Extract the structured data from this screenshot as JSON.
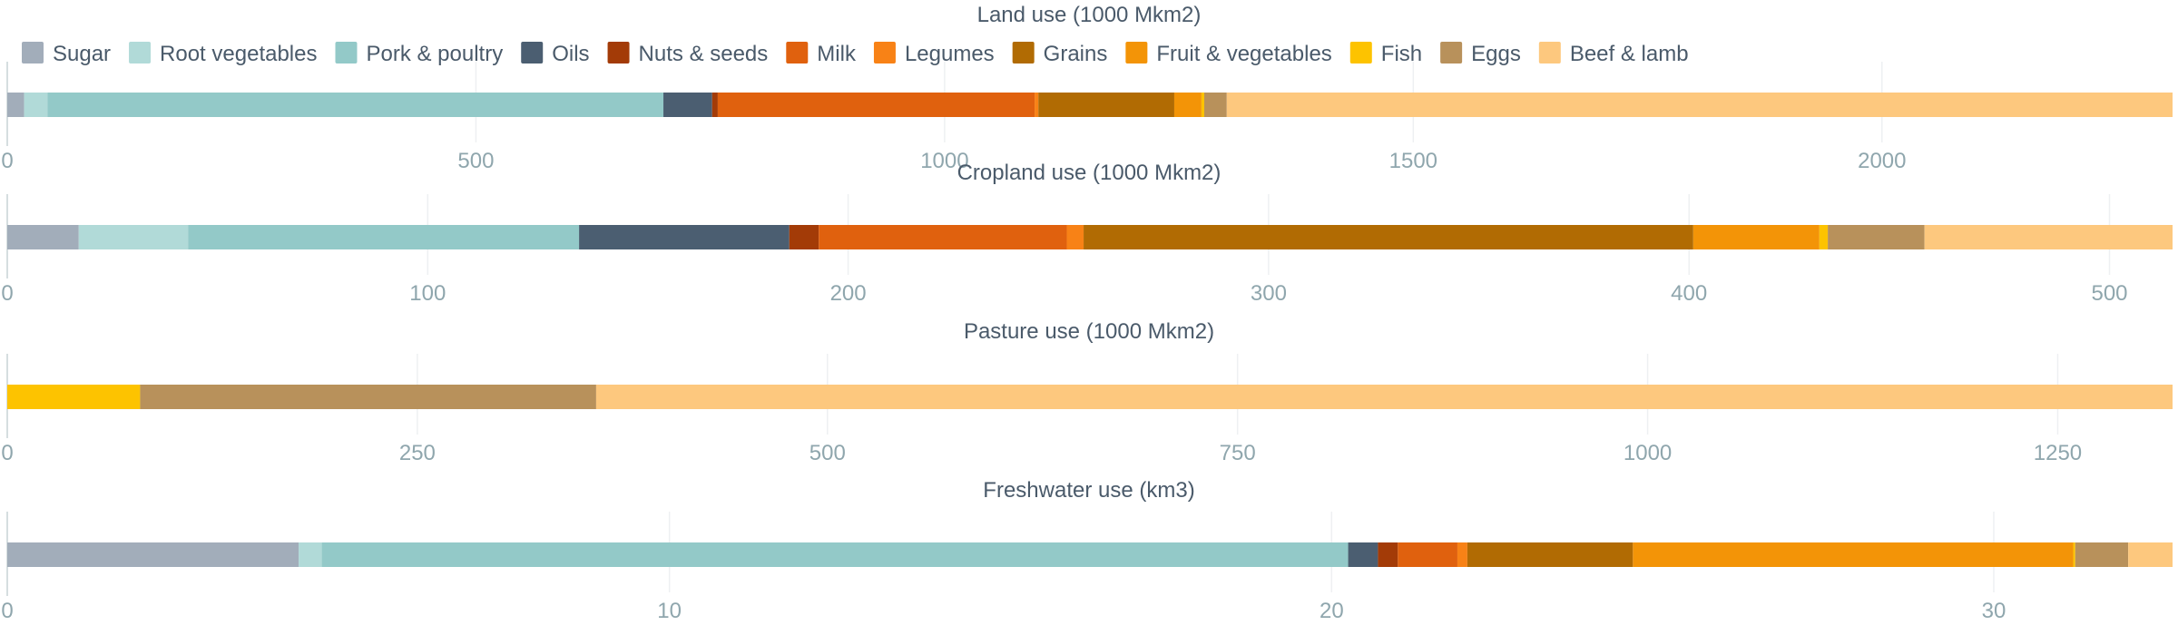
{
  "chart_data": {
    "type": "bar",
    "stacked": true,
    "orientation": "horizontal",
    "legend": {
      "position": "top"
    },
    "categories": [
      "Sugar",
      "Root vegetables",
      "Pork & poultry",
      "Oils",
      "Nuts & seeds",
      "Milk",
      "Legumes",
      "Grains",
      "Fruit & vegetables",
      "Fish",
      "Eggs",
      "Beef & lamb"
    ],
    "colors": {
      "Sugar": "#a2adba",
      "Root vegetables": "#b1dad8",
      "Pork & poultry": "#93c9c8",
      "Oils": "#4b5e71",
      "Nuts & seeds": "#a33b07",
      "Milk": "#e0610e",
      "Legumes": "#f88216",
      "Grains": "#b16b03",
      "Fruit & vegetables": "#f39407",
      "Fish": "#fdc300",
      "Eggs": "#b8915b",
      "Beef & lamb": "#fdc87e"
    },
    "panels": [
      {
        "title": "Land use (1000 Mkm2)",
        "xlim": [
          0,
          2310
        ],
        "ticks": [
          0,
          500,
          1000,
          1500,
          2000
        ],
        "tick_labels": [
          "0",
          "500",
          "1000",
          "1500",
          "2000"
        ],
        "values": {
          "Sugar": 18,
          "Root vegetables": 25,
          "Pork & poultry": 657,
          "Oils": 52,
          "Nuts & seeds": 6,
          "Milk": 338,
          "Legumes": 4,
          "Grains": 145,
          "Fruit & vegetables": 29,
          "Fish": 3,
          "Eggs": 24,
          "Beef & lamb": 1009
        }
      },
      {
        "title": "Cropland use (1000 Mkm2)",
        "xlim": [
          0,
          515
        ],
        "ticks": [
          0,
          100,
          200,
          300,
          400,
          500
        ],
        "tick_labels": [
          "0",
          "100",
          "200",
          "300",
          "400",
          "500"
        ],
        "values": {
          "Sugar": 17,
          "Root vegetables": 26,
          "Pork & poultry": 93,
          "Oils": 50,
          "Nuts & seeds": 7,
          "Milk": 59,
          "Legumes": 4,
          "Grains": 145,
          "Fruit & vegetables": 30,
          "Fish": 2,
          "Eggs": 23,
          "Beef & lamb": 59
        }
      },
      {
        "title": "Pasture use (1000 Mkm2)",
        "xlim": [
          0,
          1320
        ],
        "ticks": [
          0,
          250,
          500,
          750,
          1000,
          1250
        ],
        "tick_labels": [
          "0",
          "250",
          "500",
          "750",
          "1000",
          "1250"
        ],
        "values": {
          "Sugar": 0,
          "Root vegetables": 0,
          "Pork & poultry": 0,
          "Oils": 0,
          "Nuts & seeds": 0,
          "Milk": 0,
          "Legumes": 0,
          "Grains": 0,
          "Fruit & vegetables": 0,
          "Fish": 81,
          "Eggs": 278,
          "Beef & lamb": 961
        }
      },
      {
        "title": "Freshwater use (km3)",
        "xlim": [
          0,
          32.7
        ],
        "ticks": [
          0,
          10,
          20,
          30
        ],
        "tick_labels": [
          "0",
          "10",
          "20",
          "30"
        ],
        "values": {
          "Sugar": 4.4,
          "Root vegetables": 0.35,
          "Pork & poultry": 15.5,
          "Oils": 0.45,
          "Nuts & seeds": 0.3,
          "Milk": 0.9,
          "Legumes": 0.15,
          "Grains": 2.5,
          "Fruit & vegetables": 6.65,
          "Fish": 0.03,
          "Eggs": 0.8,
          "Beef & lamb": 0.67
        }
      }
    ]
  }
}
